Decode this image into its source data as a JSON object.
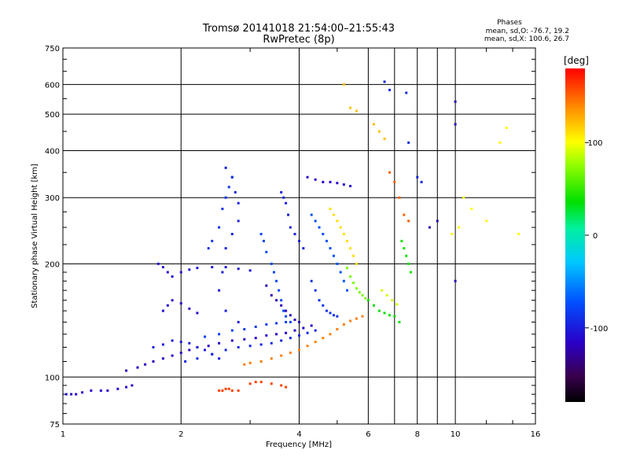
{
  "chart_data": {
    "type": "scatter",
    "title": "Tromsø 20141018 21:54:00–21:55:43",
    "subtitle": "RwPretec (8p)",
    "xlabel": "Frequency [MHz]",
    "ylabel": "Stationary phase Virtual Height [km]",
    "x_scale": "log",
    "y_scale": "log",
    "xlim": [
      1,
      16
    ],
    "ylim": [
      75,
      750
    ],
    "x_ticks": [
      1,
      2,
      4,
      6,
      8,
      10,
      16
    ],
    "y_ticks": [
      75,
      100,
      200,
      300,
      400,
      500,
      600,
      750
    ],
    "grid": true,
    "phases": {
      "heading": "Phases",
      "line_o": "mean, sd,O: -76.7, 19.2",
      "line_x": "mean, sd,X: 100.6, 26.7"
    },
    "colorbar": {
      "unit": "[deg]",
      "range": [
        -180,
        180
      ],
      "ticks": [
        100,
        0,
        -100
      ],
      "colormap": "rainbow (black–purple–blue–cyan–green–yellow–orange–red)"
    },
    "clusters": [
      {
        "trace": "O",
        "phase_deg": -110,
        "points": [
          [
            1.02,
            90
          ],
          [
            1.05,
            90
          ],
          [
            1.08,
            90
          ],
          [
            1.12,
            91
          ],
          [
            1.18,
            92
          ],
          [
            1.25,
            92
          ],
          [
            1.3,
            92
          ],
          [
            1.38,
            93
          ],
          [
            1.45,
            94
          ],
          [
            1.5,
            95
          ]
        ]
      },
      {
        "trace": "O",
        "phase_deg": -115,
        "points": [
          [
            1.45,
            104
          ],
          [
            1.55,
            106
          ],
          [
            1.62,
            108
          ],
          [
            1.7,
            110
          ],
          [
            1.8,
            112
          ],
          [
            1.9,
            114
          ],
          [
            2.0,
            116
          ],
          [
            2.1,
            118
          ],
          [
            2.2,
            120
          ],
          [
            2.35,
            121
          ],
          [
            2.5,
            123
          ],
          [
            2.7,
            125
          ],
          [
            2.9,
            126
          ],
          [
            3.1,
            127
          ],
          [
            3.3,
            129
          ],
          [
            3.5,
            130
          ],
          [
            3.7,
            131
          ],
          [
            3.9,
            133
          ],
          [
            4.1,
            135
          ],
          [
            4.3,
            137
          ]
        ]
      },
      {
        "trace": "O",
        "phase_deg": -100,
        "points": [
          [
            1.7,
            120
          ],
          [
            1.8,
            122
          ],
          [
            1.9,
            125
          ],
          [
            2.0,
            124
          ],
          [
            2.1,
            123
          ],
          [
            2.2,
            120
          ],
          [
            2.3,
            118
          ],
          [
            2.4,
            115
          ],
          [
            2.5,
            112
          ]
        ]
      },
      {
        "trace": "O",
        "phase_deg": -95,
        "points": [
          [
            2.05,
            110
          ],
          [
            2.2,
            112
          ],
          [
            2.4,
            115
          ],
          [
            2.6,
            118
          ],
          [
            2.8,
            120
          ],
          [
            3.0,
            121
          ],
          [
            3.2,
            122
          ],
          [
            3.4,
            123
          ],
          [
            3.6,
            125
          ],
          [
            3.8,
            127
          ],
          [
            4.0,
            129
          ],
          [
            4.2,
            131
          ],
          [
            4.4,
            133
          ]
        ]
      },
      {
        "trace": "O",
        "phase_deg": -85,
        "points": [
          [
            2.3,
            128
          ],
          [
            2.5,
            130
          ],
          [
            2.7,
            133
          ],
          [
            2.9,
            134
          ],
          [
            3.1,
            136
          ],
          [
            3.3,
            138
          ],
          [
            3.5,
            139
          ],
          [
            3.7,
            140
          ]
        ]
      },
      {
        "trace": "X",
        "phase_deg": 160,
        "points": [
          [
            2.5,
            92
          ],
          [
            2.55,
            92
          ],
          [
            2.6,
            93
          ],
          [
            2.65,
            93
          ],
          [
            2.7,
            92
          ],
          [
            2.8,
            92
          ],
          [
            3.0,
            96
          ],
          [
            3.1,
            97
          ],
          [
            3.2,
            97
          ],
          [
            3.4,
            96
          ],
          [
            3.6,
            95
          ],
          [
            3.7,
            94
          ]
        ]
      },
      {
        "trace": "X",
        "phase_deg": 140,
        "points": [
          [
            2.9,
            108
          ],
          [
            3.0,
            109
          ],
          [
            3.2,
            110
          ],
          [
            3.4,
            112
          ],
          [
            3.6,
            114
          ],
          [
            3.8,
            116
          ],
          [
            4.0,
            118
          ],
          [
            4.2,
            121
          ],
          [
            4.4,
            124
          ],
          [
            4.6,
            127
          ],
          [
            4.8,
            130
          ],
          [
            5.0,
            134
          ],
          [
            5.2,
            138
          ],
          [
            5.4,
            141
          ],
          [
            5.6,
            143
          ],
          [
            5.8,
            145
          ]
        ]
      },
      {
        "trace": "O",
        "phase_deg": -105,
        "points": [
          [
            1.75,
            200
          ],
          [
            1.8,
            196
          ],
          [
            1.85,
            190
          ],
          [
            1.9,
            185
          ],
          [
            2.0,
            190
          ],
          [
            2.1,
            193
          ],
          [
            2.2,
            195
          ],
          [
            2.4,
            196
          ],
          [
            2.6,
            196
          ],
          [
            2.8,
            194
          ],
          [
            3.0,
            192
          ]
        ]
      },
      {
        "trace": "O",
        "phase_deg": -110,
        "points": [
          [
            1.8,
            150
          ],
          [
            1.85,
            155
          ],
          [
            1.9,
            160
          ],
          [
            2.0,
            157
          ],
          [
            2.1,
            152
          ],
          [
            2.2,
            148
          ]
        ]
      },
      {
        "trace": "O",
        "phase_deg": -100,
        "points": [
          [
            2.6,
            360
          ],
          [
            2.7,
            340
          ],
          [
            2.75,
            310
          ],
          [
            2.8,
            290
          ],
          [
            2.8,
            260
          ],
          [
            2.7,
            240
          ],
          [
            2.6,
            220
          ],
          [
            2.55,
            190
          ],
          [
            2.5,
            170
          ],
          [
            2.6,
            150
          ],
          [
            2.8,
            140
          ]
        ]
      },
      {
        "trace": "O",
        "phase_deg": -90,
        "points": [
          [
            2.35,
            220
          ],
          [
            2.4,
            230
          ],
          [
            2.5,
            250
          ],
          [
            2.55,
            280
          ],
          [
            2.6,
            300
          ],
          [
            2.65,
            320
          ],
          [
            2.7,
            340
          ]
        ]
      },
      {
        "trace": "O",
        "phase_deg": -80,
        "points": [
          [
            3.2,
            240
          ],
          [
            3.25,
            230
          ],
          [
            3.3,
            215
          ],
          [
            3.4,
            200
          ],
          [
            3.45,
            190
          ],
          [
            3.5,
            180
          ],
          [
            3.55,
            170
          ],
          [
            3.6,
            160
          ],
          [
            3.65,
            150
          ],
          [
            3.7,
            145
          ],
          [
            3.8,
            140
          ]
        ]
      },
      {
        "trace": "O",
        "phase_deg": -120,
        "points": [
          [
            3.3,
            175
          ],
          [
            3.4,
            165
          ],
          [
            3.5,
            160
          ],
          [
            3.6,
            155
          ],
          [
            3.7,
            150
          ],
          [
            3.8,
            146
          ],
          [
            3.9,
            142
          ],
          [
            4.0,
            140
          ]
        ]
      },
      {
        "trace": "O",
        "phase_deg": -100,
        "points": [
          [
            3.6,
            310
          ],
          [
            3.65,
            300
          ],
          [
            3.7,
            290
          ],
          [
            3.75,
            270
          ],
          [
            3.8,
            250
          ],
          [
            3.9,
            240
          ],
          [
            4.0,
            230
          ],
          [
            4.1,
            220
          ]
        ]
      },
      {
        "trace": "O",
        "phase_deg": -110,
        "points": [
          [
            4.2,
            340
          ],
          [
            4.4,
            335
          ],
          [
            4.6,
            330
          ],
          [
            4.8,
            330
          ],
          [
            5.0,
            328
          ],
          [
            5.2,
            325
          ],
          [
            5.4,
            322
          ]
        ]
      },
      {
        "trace": "O",
        "phase_deg": -75,
        "points": [
          [
            4.3,
            270
          ],
          [
            4.4,
            260
          ],
          [
            4.5,
            250
          ],
          [
            4.6,
            240
          ],
          [
            4.7,
            230
          ],
          [
            4.8,
            220
          ],
          [
            4.9,
            210
          ],
          [
            5.0,
            200
          ],
          [
            5.1,
            190
          ],
          [
            5.2,
            180
          ],
          [
            5.3,
            170
          ]
        ]
      },
      {
        "trace": "O",
        "phase_deg": -90,
        "points": [
          [
            4.3,
            180
          ],
          [
            4.4,
            170
          ],
          [
            4.5,
            160
          ],
          [
            4.6,
            155
          ],
          [
            4.7,
            150
          ],
          [
            4.8,
            148
          ],
          [
            4.9,
            146
          ],
          [
            5.0,
            145
          ]
        ]
      },
      {
        "trace": "X",
        "phase_deg": 110,
        "points": [
          [
            4.8,
            280
          ],
          [
            4.9,
            270
          ],
          [
            5.0,
            260
          ],
          [
            5.1,
            250
          ],
          [
            5.2,
            240
          ],
          [
            5.3,
            230
          ],
          [
            5.4,
            220
          ],
          [
            5.5,
            210
          ],
          [
            5.6,
            200
          ]
        ]
      },
      {
        "trace": "X",
        "phase_deg": 70,
        "points": [
          [
            5.3,
            195
          ],
          [
            5.4,
            185
          ],
          [
            5.5,
            178
          ],
          [
            5.6,
            172
          ],
          [
            5.7,
            168
          ],
          [
            5.8,
            165
          ],
          [
            5.9,
            162
          ]
        ]
      },
      {
        "trace": "X",
        "phase_deg": 35,
        "points": [
          [
            6.0,
            160
          ],
          [
            6.2,
            155
          ],
          [
            6.4,
            150
          ],
          [
            6.6,
            148
          ],
          [
            6.8,
            146
          ],
          [
            7.0,
            145
          ],
          [
            7.2,
            140
          ]
        ]
      },
      {
        "trace": "X",
        "phase_deg": 90,
        "points": [
          [
            6.5,
            170
          ],
          [
            6.7,
            165
          ],
          [
            6.9,
            160
          ],
          [
            7.1,
            156
          ]
        ]
      },
      {
        "trace": "X",
        "phase_deg": 40,
        "points": [
          [
            7.3,
            230
          ],
          [
            7.4,
            220
          ],
          [
            7.5,
            210
          ],
          [
            7.6,
            200
          ],
          [
            7.7,
            190
          ]
        ]
      },
      {
        "trace": "X",
        "phase_deg": 120,
        "points": [
          [
            5.2,
            600
          ],
          [
            5.4,
            520
          ],
          [
            5.6,
            510
          ],
          [
            6.2,
            470
          ],
          [
            6.4,
            450
          ],
          [
            6.6,
            430
          ]
        ]
      },
      {
        "trace": "O",
        "phase_deg": -95,
        "points": [
          [
            6.6,
            610
          ],
          [
            6.8,
            580
          ],
          [
            7.5,
            570
          ],
          [
            7.6,
            420
          ],
          [
            8.0,
            340
          ],
          [
            8.2,
            330
          ]
        ]
      },
      {
        "trace": "X",
        "phase_deg": 150,
        "points": [
          [
            6.8,
            350
          ],
          [
            7.0,
            330
          ],
          [
            7.2,
            300
          ],
          [
            7.4,
            270
          ],
          [
            7.6,
            260
          ]
        ]
      },
      {
        "trace": "X",
        "phase_deg": 100,
        "points": [
          [
            9.8,
            240
          ],
          [
            10.2,
            250
          ],
          [
            10.5,
            300
          ],
          [
            11.0,
            280
          ],
          [
            12.0,
            260
          ],
          [
            13.0,
            420
          ],
          [
            13.5,
            460
          ],
          [
            14.5,
            240
          ]
        ]
      },
      {
        "trace": "O",
        "phase_deg": -120,
        "points": [
          [
            10.0,
            540
          ],
          [
            10.0,
            470
          ],
          [
            10.0,
            180
          ],
          [
            8.6,
            250
          ],
          [
            9.0,
            260
          ]
        ]
      }
    ]
  }
}
